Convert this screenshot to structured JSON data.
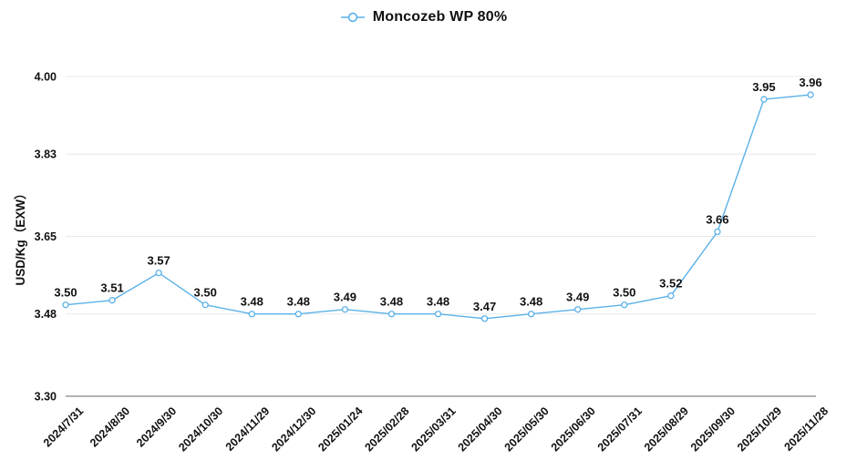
{
  "legend": {
    "label": "Moncozeb WP 80%"
  },
  "chart_data": {
    "type": "line",
    "title": "Moncozeb WP 80%",
    "xlabel": "",
    "ylabel": "USD/Kg（EXW）",
    "x": [
      "2024/7/31",
      "2024/8/30",
      "2024/9/30",
      "2024/10/30",
      "2024/11/29",
      "2024/12/30",
      "2025/01/24",
      "2025/02/28",
      "2025/03/31",
      "2025/04/30",
      "2025/05/30",
      "2025/06/30",
      "2025/07/31",
      "2025/08/29",
      "2025/09/30",
      "2025/10/29",
      "2025/11/28"
    ],
    "series": [
      {
        "name": "Moncozeb WP 80%",
        "values": [
          3.5,
          3.51,
          3.57,
          3.5,
          3.48,
          3.48,
          3.49,
          3.48,
          3.48,
          3.47,
          3.48,
          3.49,
          3.5,
          3.52,
          3.66,
          3.95,
          3.96
        ]
      }
    ],
    "ylim": [
      3.3,
      4.0
    ],
    "yticks": [
      4.0,
      3.83,
      3.65,
      3.48,
      3.3
    ],
    "grid": true,
    "legend_position": "top-center",
    "marker": "open-circle",
    "colors": {
      "line": "#5ab1e8",
      "marker_fill": "#ffffff",
      "grid": "#e8e8e8",
      "axis_line": "#999999",
      "text": "#111111"
    }
  }
}
